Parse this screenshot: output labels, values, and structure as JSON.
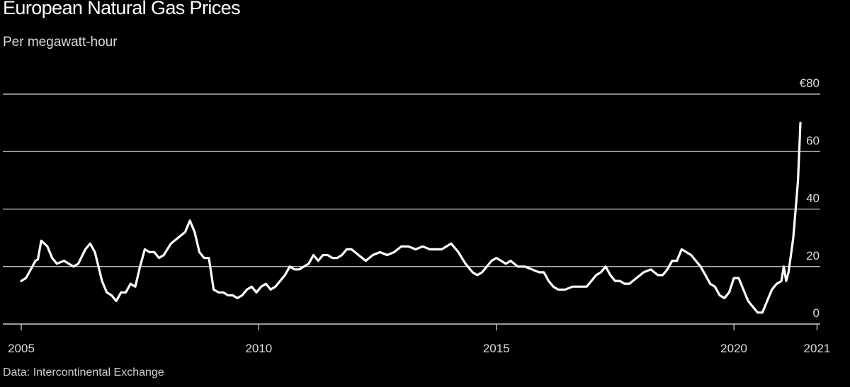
{
  "title": "European Natural Gas Prices",
  "subtitle": "Per megawatt-hour",
  "source": "Data: Intercontinental Exchange",
  "colors": {
    "background": "#000000",
    "line": "#ffffff",
    "grid": "#cfcfcf",
    "text": "#dcdcdc"
  },
  "chart_data": {
    "type": "line",
    "title": "European Natural Gas Prices",
    "subtitle": "Per megawatt-hour",
    "xlabel": "",
    "ylabel": "",
    "ylim": [
      0,
      80
    ],
    "yticks": [
      {
        "value": 80,
        "label": "€80"
      },
      {
        "value": 60,
        "label": "60"
      },
      {
        "value": 40,
        "label": "40"
      },
      {
        "value": 20,
        "label": "20"
      },
      {
        "value": 0,
        "label": "0"
      }
    ],
    "xlim": [
      2005.0,
      2021.4
    ],
    "xticks": [
      {
        "value": 2005,
        "label": "2005"
      },
      {
        "value": 2010,
        "label": "2010"
      },
      {
        "value": 2015,
        "label": "2015"
      },
      {
        "value": 2020,
        "label": "2020"
      },
      {
        "value": 2021.75,
        "label": "2021"
      }
    ],
    "grid": true,
    "series": [
      {
        "x": [
          2005.0,
          2005.1,
          2005.2,
          2005.3,
          2005.35,
          2005.42,
          2005.55,
          2005.65,
          2005.75,
          2005.9,
          2006.0,
          2006.1,
          2006.2,
          2006.35,
          2006.45,
          2006.55,
          2006.7,
          2006.8,
          2006.9,
          2007.0,
          2007.1,
          2007.2,
          2007.3,
          2007.4,
          2007.5,
          2007.6,
          2007.7,
          2007.8,
          2007.9,
          2008.0,
          2008.15,
          2008.3,
          2008.45,
          2008.55,
          2008.65,
          2008.75,
          2008.85,
          2008.95,
          2009.05,
          2009.15,
          2009.25,
          2009.35,
          2009.45,
          2009.55,
          2009.65,
          2009.75,
          2009.85,
          2009.95,
          2010.05,
          2010.15,
          2010.25,
          2010.35,
          2010.45,
          2010.55,
          2010.65,
          2010.75,
          2010.85,
          2010.95,
          2011.05,
          2011.15,
          2011.25,
          2011.35,
          2011.45,
          2011.55,
          2011.65,
          2011.75,
          2011.85,
          2011.95,
          2012.1,
          2012.25,
          2012.4,
          2012.55,
          2012.7,
          2012.85,
          2013.0,
          2013.15,
          2013.3,
          2013.45,
          2013.6,
          2013.75,
          2013.85,
          2013.95,
          2014.05,
          2014.2,
          2014.35,
          2014.5,
          2014.6,
          2014.7,
          2014.8,
          2014.9,
          2015.0,
          2015.1,
          2015.2,
          2015.3,
          2015.45,
          2015.6,
          2015.75,
          2015.9,
          2016.0,
          2016.1,
          2016.2,
          2016.3,
          2016.45,
          2016.6,
          2016.75,
          2016.9,
          2017.0,
          2017.1,
          2017.2,
          2017.3,
          2017.4,
          2017.5,
          2017.6,
          2017.7,
          2017.8,
          2017.95,
          2018.1,
          2018.25,
          2018.4,
          2018.5,
          2018.6,
          2018.7,
          2018.8,
          2018.9,
          2019.0,
          2019.1,
          2019.2,
          2019.3,
          2019.4,
          2019.5,
          2019.6,
          2019.7,
          2019.8,
          2019.9,
          2020.0,
          2020.1,
          2020.2,
          2020.3,
          2020.4,
          2020.5,
          2020.6,
          2020.7,
          2020.8,
          2020.9,
          2021.0,
          2021.05,
          2021.1,
          2021.15,
          2021.2,
          2021.25,
          2021.3,
          2021.35,
          2021.4
        ],
        "values": [
          15,
          16,
          19,
          22,
          22.5,
          29,
          27,
          23,
          21,
          22,
          21,
          20,
          21,
          26,
          28,
          25,
          15,
          11,
          10,
          8,
          11,
          11,
          14,
          13,
          20,
          26,
          25,
          25,
          23,
          24,
          28,
          30,
          32,
          36,
          32,
          25,
          23,
          23,
          12,
          11,
          11,
          10,
          10,
          9,
          10,
          12,
          13,
          11,
          13,
          14,
          12,
          13,
          15,
          17,
          20,
          19,
          19,
          20,
          21,
          24,
          22,
          24,
          24,
          23,
          23,
          24,
          26,
          26,
          24,
          22,
          24,
          25,
          24,
          25,
          27,
          27,
          26,
          27,
          26,
          26,
          26,
          27,
          28,
          25,
          21,
          18,
          17,
          18,
          20,
          22,
          23,
          22,
          21,
          22,
          20,
          20,
          19,
          18,
          18,
          15,
          13,
          12,
          12,
          13,
          13,
          13,
          15,
          17,
          18,
          20,
          17,
          15,
          15,
          14,
          14,
          16,
          18,
          19,
          17,
          17,
          19,
          22,
          22,
          26,
          25,
          24,
          22,
          20,
          17,
          14,
          13,
          10,
          9,
          11,
          16,
          16,
          12,
          8,
          6,
          4,
          4,
          8,
          12,
          14,
          15,
          20,
          15,
          18,
          24,
          30,
          40,
          50,
          70
        ]
      }
    ]
  }
}
